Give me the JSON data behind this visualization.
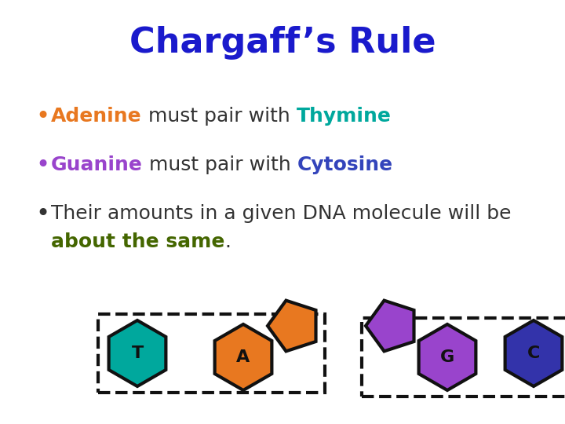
{
  "title": "Chargaff’s Rule",
  "title_color": "#1a1acc",
  "title_fontsize": 32,
  "bullet1_parts": [
    {
      "text": "Adenine",
      "color": "#e87820",
      "bold": true
    },
    {
      "text": " must pair with ",
      "color": "#333333",
      "bold": false
    },
    {
      "text": "Thymine",
      "color": "#00a89d",
      "bold": true
    }
  ],
  "bullet2_parts": [
    {
      "text": "Guanine",
      "color": "#9944cc",
      "bold": true
    },
    {
      "text": " must pair with ",
      "color": "#333333",
      "bold": false
    },
    {
      "text": "Cytosine",
      "color": "#3344bb",
      "bold": true
    }
  ],
  "bullet3_line1": "Their amounts in a given DNA molecule will be",
  "bullet3_line2_parts": [
    {
      "text": "about the same",
      "color": "#446600",
      "bold": true
    },
    {
      "text": ".",
      "color": "#333333",
      "bold": false
    }
  ],
  "bullet_color1": "#e87820",
  "bullet_color2": "#9944cc",
  "bullet_color3": "#333333",
  "background_color": "#ffffff",
  "text_fontsize": 18,
  "label_fontsize": 16
}
